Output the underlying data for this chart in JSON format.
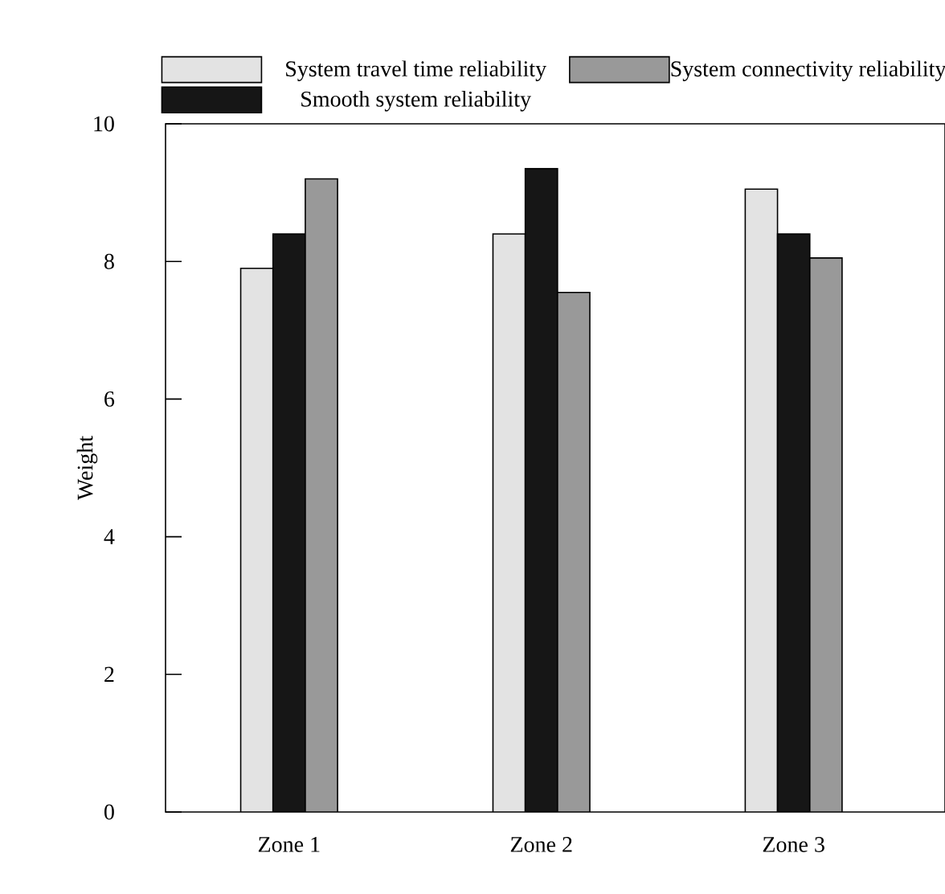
{
  "chart_data": {
    "type": "bar",
    "ylabel": "Weight",
    "categories": [
      "Zone 1",
      "Zone 2",
      "Zone 3"
    ],
    "series": [
      {
        "name": "System travel time reliability",
        "color": "#e3e3e3",
        "values": [
          7.9,
          8.4,
          9.05
        ]
      },
      {
        "name": "Smooth system reliability",
        "color": "#161616",
        "values": [
          8.4,
          9.35,
          8.4
        ]
      },
      {
        "name": "System connectivity reliability",
        "color": "#999999",
        "values": [
          9.2,
          7.55,
          8.05
        ]
      }
    ],
    "ylim": [
      0,
      10
    ],
    "yticks": [
      0,
      2,
      4,
      6,
      8,
      10
    ],
    "grid": false,
    "legend": "top"
  }
}
